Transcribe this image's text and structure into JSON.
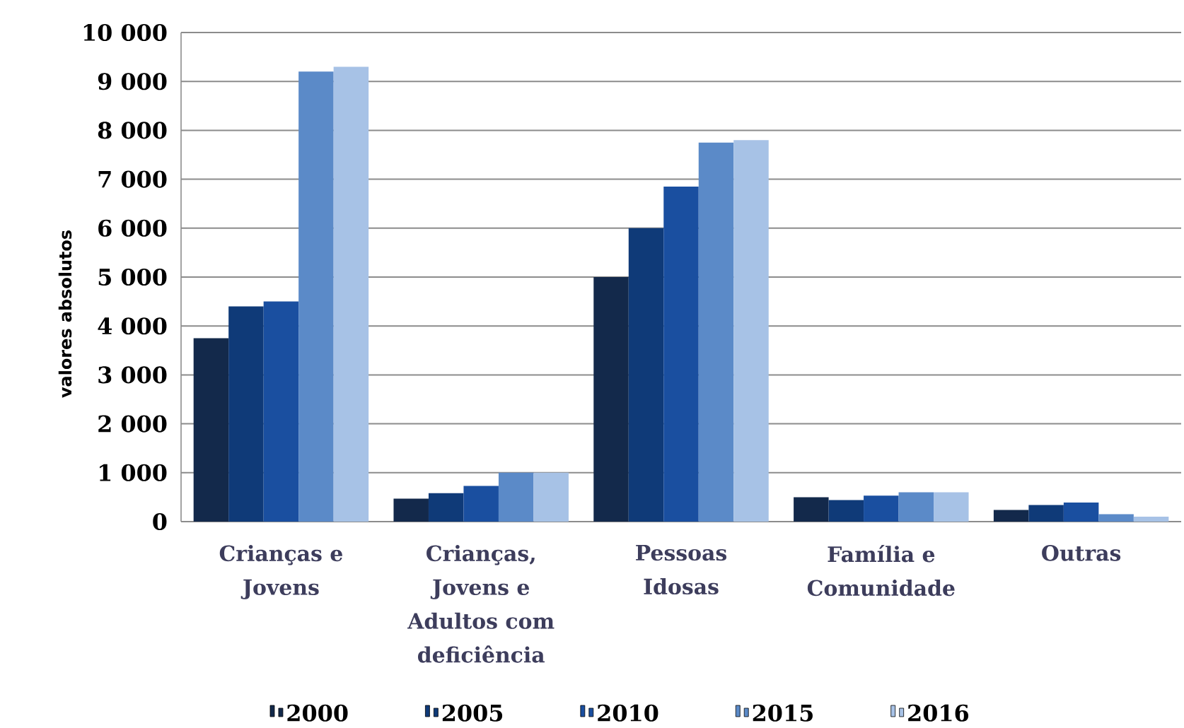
{
  "chart_data": {
    "type": "bar",
    "ylabel": "valores absolutos",
    "categories": [
      "Crianças e Jovens",
      "Crianças, Jovens e Adultos com deficiência",
      "Pessoas Idosas",
      "Família e Comunidade",
      "Outras"
    ],
    "series": [
      {
        "name": "2000",
        "color": "#13294b",
        "values": [
          3750,
          470,
          5000,
          500,
          240
        ]
      },
      {
        "name": "2005",
        "color": "#0f3a78",
        "values": [
          4400,
          580,
          6000,
          440,
          340
        ]
      },
      {
        "name": "2010",
        "color": "#1a4fa0",
        "values": [
          4500,
          730,
          6850,
          530,
          390
        ]
      },
      {
        "name": "2015",
        "color": "#5b8ac8",
        "values": [
          9200,
          1000,
          7750,
          600,
          150
        ]
      },
      {
        "name": "2016",
        "color": "#a7c2e6",
        "values": [
          9300,
          1000,
          7800,
          600,
          100
        ]
      }
    ],
    "ylim": [
      0,
      10000
    ],
    "yticks": [
      0,
      {
        "value": 1000,
        "label": "1 000"
      },
      {
        "value": 2000,
        "label": "2 000"
      },
      {
        "value": 3000,
        "label": "3 000"
      },
      {
        "value": 4000,
        "label": "4 000"
      },
      {
        "value": 5000,
        "label": "5 000"
      },
      {
        "value": 6000,
        "label": "6 000"
      },
      {
        "value": 7000,
        "label": "7 000"
      },
      {
        "value": 8000,
        "label": "8 000"
      },
      {
        "value": 9000,
        "label": "9 000"
      },
      {
        "value": 10000,
        "label": "10 000"
      }
    ],
    "grid": "y",
    "legend": "bottom"
  }
}
